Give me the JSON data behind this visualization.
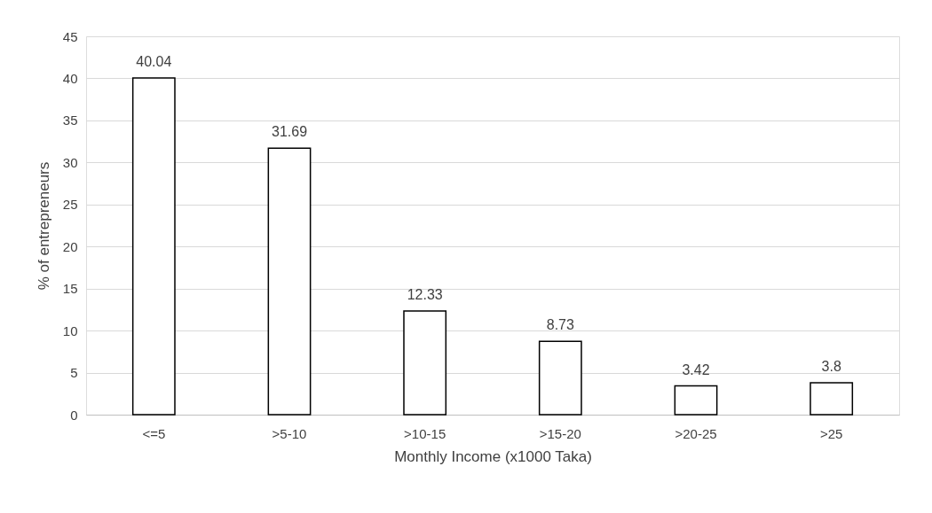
{
  "chart_data": {
    "type": "bar",
    "xlabel": "Monthly Income (x1000 Taka)",
    "ylabel": "% of entrepreneurs",
    "categories": [
      "<=5",
      ">5-10",
      ">10-15",
      ">15-20",
      ">20-25",
      ">25"
    ],
    "values": [
      40.04,
      31.69,
      12.33,
      8.73,
      3.42,
      3.8
    ],
    "value_labels": [
      "40.04",
      "31.69",
      "12.33",
      "8.73",
      "3.42",
      "3.8"
    ],
    "color": "#ffffff",
    "ylim": [
      0,
      45
    ],
    "yticks": [
      0,
      5,
      10,
      15,
      20,
      25,
      30,
      35,
      40,
      45
    ],
    "grid": "y"
  }
}
